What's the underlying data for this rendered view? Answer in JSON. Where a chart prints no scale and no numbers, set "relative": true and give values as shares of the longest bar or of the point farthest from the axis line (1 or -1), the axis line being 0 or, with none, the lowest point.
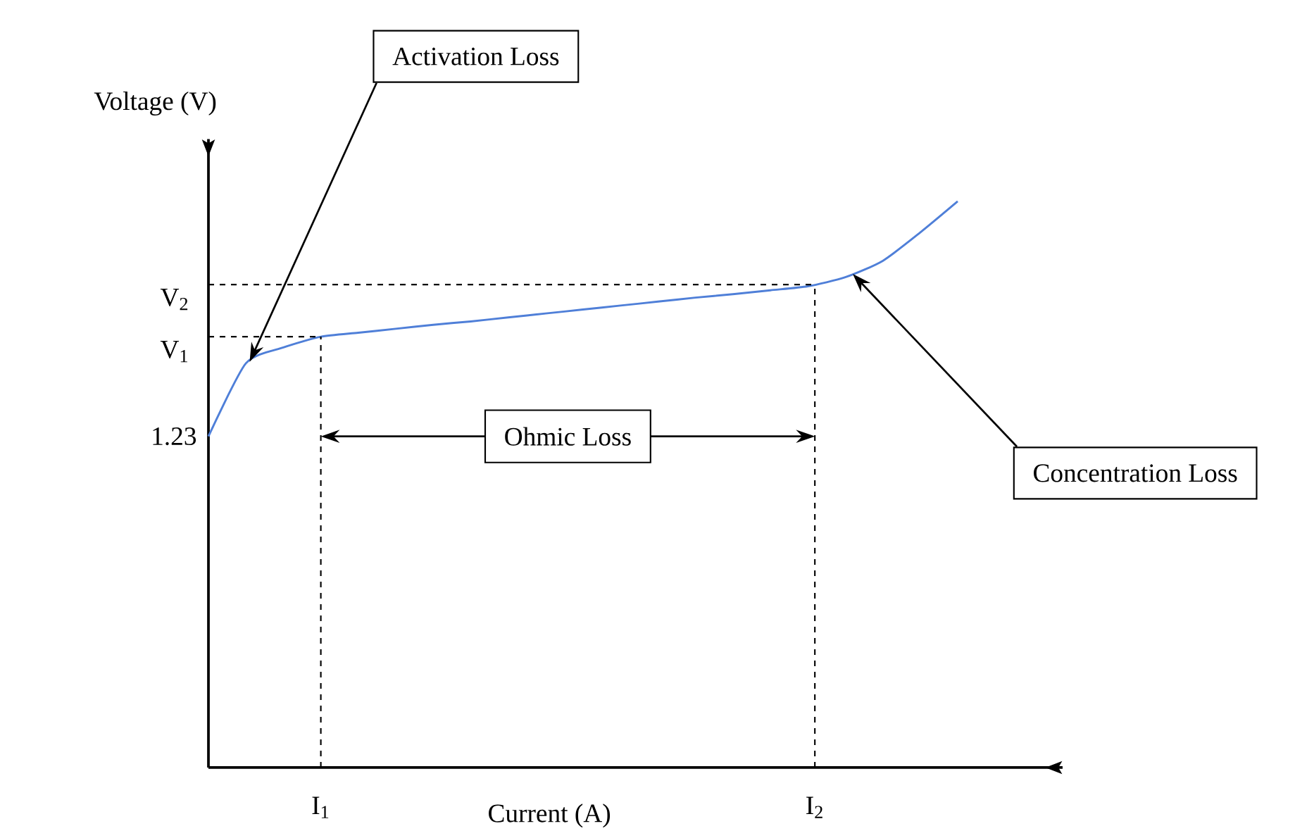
{
  "chart_data": {
    "type": "line",
    "relative": true,
    "xlabel": "Current (A)",
    "ylabel": "Voltage (V)",
    "categories": [
      null,
      null,
      null,
      null,
      null,
      null,
      null,
      null,
      null,
      null,
      null,
      null,
      null,
      null,
      null,
      null,
      null,
      null,
      null,
      null,
      null
    ],
    "series": [
      {
        "color": "#4f7fd8",
        "values": [
          0.585,
          0.714,
          0.742,
          0.761,
          0.768,
          0.775,
          0.782,
          0.788,
          0.795,
          0.802,
          0.809,
          0.816,
          0.823,
          0.83,
          0.836,
          0.843,
          0.85,
          0.866,
          0.895,
          0.945,
          1
        ]
      }
    ],
    "ref_lines": [
      {
        "axis": "y",
        "value": 0.761,
        "label": "V$_{1}$",
        "line_style": "dashed"
      },
      {
        "axis": "y",
        "value": 0.853,
        "label": "V$_{2}$",
        "line_style": "dashed"
      }
    ],
    "annotations": [
      "Activation Loss",
      "Ohmic Loss",
      "Concentration Loss",
      "1.23",
      "I$_{1}$",
      "I$_{2}$"
    ],
    "marker": "none",
    "line_style": "solid"
  }
}
